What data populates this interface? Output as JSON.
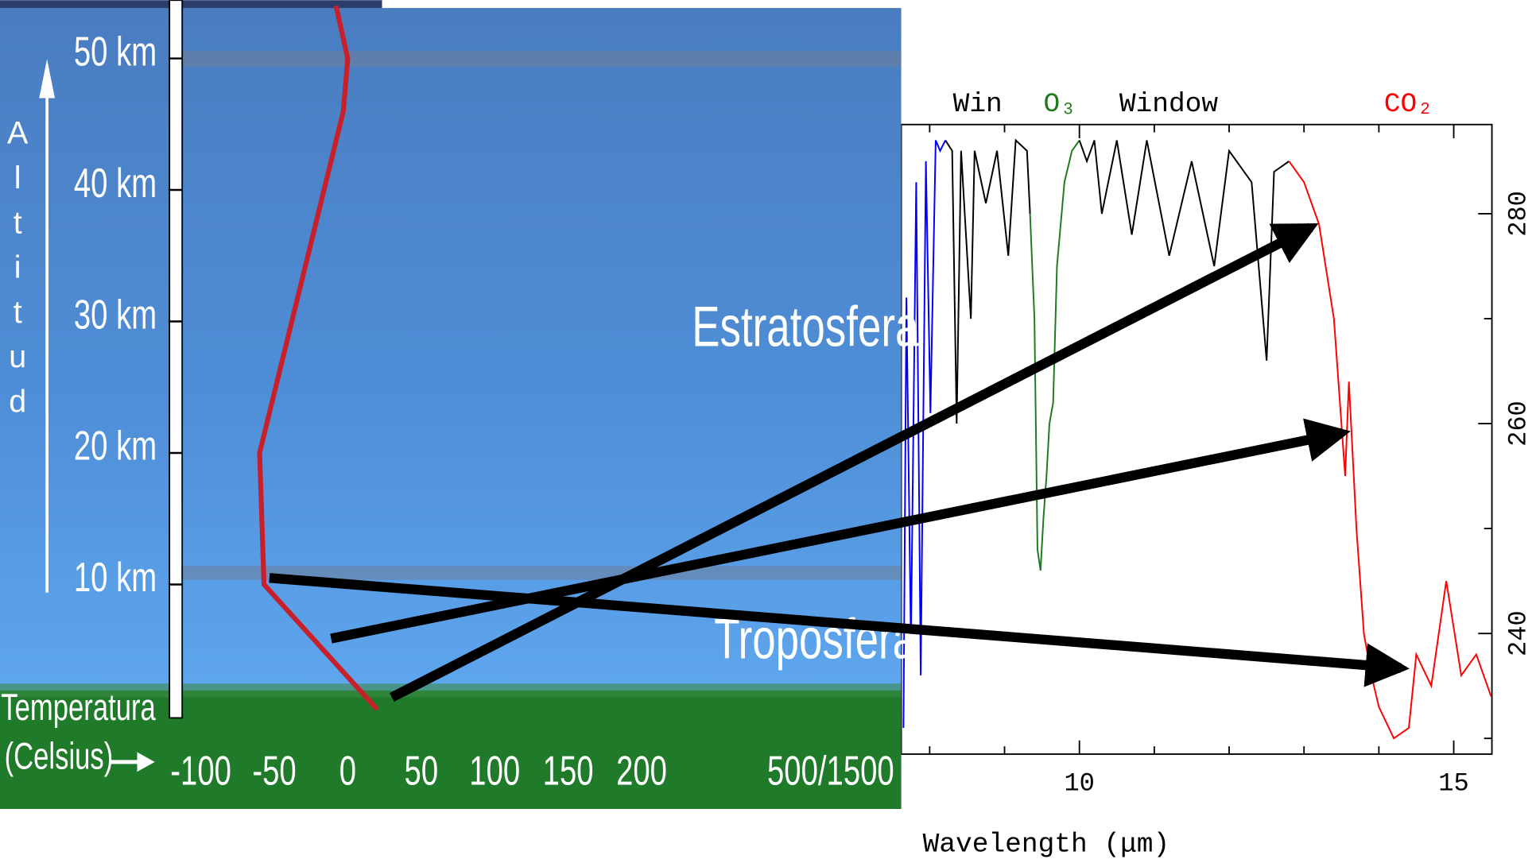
{
  "chart_data": [
    {
      "type": "line",
      "x": [
        -8,
        0,
        -3,
        -60,
        -57,
        20
      ],
      "values": [
        54,
        50,
        46,
        20,
        10,
        0.5
      ],
      "color": "#c8202a",
      "xlim": [
        -236.7,
        376.7
      ],
      "ylim": [
        0,
        54.4
      ],
      "xticks": [
        -100,
        -50,
        0,
        50,
        100,
        150,
        200
      ],
      "yticks": [
        {
          "value": 10,
          "label": "10 km"
        },
        {
          "value": 20,
          "label": "20 km"
        },
        {
          "value": 30,
          "label": "30 km"
        },
        {
          "value": 40,
          "label": "40 km"
        },
        {
          "value": 50,
          "label": "50 km"
        }
      ],
      "ylabel": "Altitud",
      "xlabel": [
        "Temperatura",
        "(Celsius)"
      ],
      "annotations": [
        "500/1500",
        "Estratosfera",
        "Troposfera"
      ]
    },
    {
      "type": "line",
      "xlabel": "Wavelength (μm)",
      "xlim": [
        7.62,
        15.51
      ],
      "ylim": [
        228.5,
        288.5
      ],
      "xticks": [
        10,
        15
      ],
      "xminor": [
        8,
        9,
        11,
        12,
        13,
        14
      ],
      "yticks": [
        240,
        260,
        280
      ],
      "yminor": [
        230,
        250,
        270
      ],
      "annotations": [
        {
          "text": "Win",
          "color": "#000000"
        },
        {
          "text": "O₃",
          "color": "#1f7a1f"
        },
        {
          "text": "Window",
          "color": "#000000"
        },
        {
          "text": "CO₂",
          "color": "#ff0000"
        }
      ],
      "series": [
        {
          "color": "#0000ff",
          "x": [
            7.65,
            7.69,
            7.75,
            7.82,
            7.88,
            7.95,
            8.01,
            8.08,
            8.14,
            8.21
          ],
          "values": [
            231,
            272,
            239,
            283,
            236,
            285,
            261,
            287,
            286,
            287
          ]
        },
        {
          "color": "#000000",
          "x": [
            8.21,
            8.3,
            8.36,
            8.42,
            8.55,
            8.6,
            8.75,
            8.9,
            9.05,
            9.15,
            9.3,
            9.34
          ],
          "values": [
            287,
            286,
            260,
            286,
            270,
            286,
            281,
            286,
            276,
            287,
            286,
            280
          ]
        },
        {
          "color": "#1f7a1f",
          "x": [
            9.34,
            9.4,
            9.44,
            9.48,
            9.52,
            9.56,
            9.6,
            9.65,
            9.7,
            9.8,
            9.9,
            10.0
          ],
          "values": [
            280,
            270,
            248,
            246,
            251,
            255,
            260,
            262,
            275,
            283,
            286,
            287
          ]
        },
        {
          "color": "#000000",
          "x": [
            10.0,
            10.1,
            10.2,
            10.3,
            10.5,
            10.7,
            10.9,
            11.2,
            11.5,
            11.8,
            12.0,
            12.3,
            12.5,
            12.6,
            12.8
          ],
          "values": [
            287,
            285,
            287,
            280,
            287,
            278,
            287,
            276,
            285,
            275,
            286,
            283,
            266,
            284,
            285
          ]
        },
        {
          "color": "#ff0000",
          "x": [
            12.8,
            13.0,
            13.2,
            13.4,
            13.55,
            13.6,
            13.7,
            13.8,
            13.9,
            14.0,
            14.2,
            14.4,
            14.5,
            14.7,
            14.9,
            15.1,
            15.3,
            15.5
          ],
          "values": [
            285,
            283,
            279,
            270,
            255,
            264,
            250,
            240,
            236,
            233,
            230,
            231,
            238,
            235,
            245,
            236,
            238,
            234
          ]
        }
      ]
    }
  ]
}
